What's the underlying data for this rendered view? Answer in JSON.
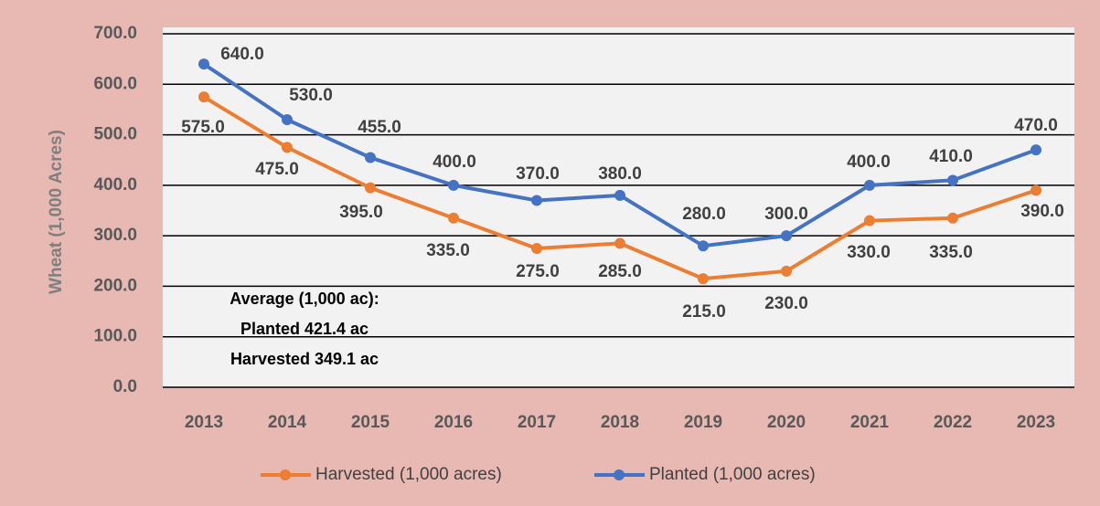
{
  "chart_data": {
    "type": "line",
    "y_label": "Wheat (1,000 Acres)",
    "categories": [
      "2013",
      "2014",
      "2015",
      "2016",
      "2017",
      "2018",
      "2019",
      "2020",
      "2021",
      "2022",
      "2023"
    ],
    "series": [
      {
        "name": "Harvested (1,000 acres)",
        "color": "#ed7d31",
        "values": [
          575,
          475,
          395,
          335,
          275,
          285,
          215,
          230,
          330,
          335,
          390
        ],
        "value_labels": [
          "575.0",
          "475.0",
          "395.0",
          "335.0",
          "275.0",
          "285.0",
          "215.0",
          "230.0",
          "330.0",
          "335.0",
          "390.0"
        ]
      },
      {
        "name": "Planted (1,000 acres)",
        "color": "#4472c4",
        "values": [
          640,
          530,
          455,
          400,
          370,
          380,
          280,
          300,
          400,
          410,
          470
        ],
        "value_labels": [
          "640.0",
          "530.0",
          "455.0",
          "400.0",
          "370.0",
          "380.0",
          "280.0",
          "300.0",
          "400.0",
          "410.0",
          "470.0"
        ]
      }
    ],
    "ylim": [
      0,
      700
    ],
    "yticks": [
      {
        "value": 0,
        "label": "0.0"
      },
      {
        "value": 100,
        "label": "100.0"
      },
      {
        "value": 200,
        "label": "200.0"
      },
      {
        "value": 300,
        "label": "300.0"
      },
      {
        "value": 400,
        "label": "400.0"
      },
      {
        "value": 500,
        "label": "500.0"
      },
      {
        "value": 600,
        "label": "600.0"
      },
      {
        "value": 700,
        "label": "700.0"
      }
    ],
    "grid": true,
    "legend": "bottom",
    "annotations": [
      "Average (1,000 ac):",
      "Planted 421.4 ac",
      "Harvested 349.1 ac"
    ]
  }
}
